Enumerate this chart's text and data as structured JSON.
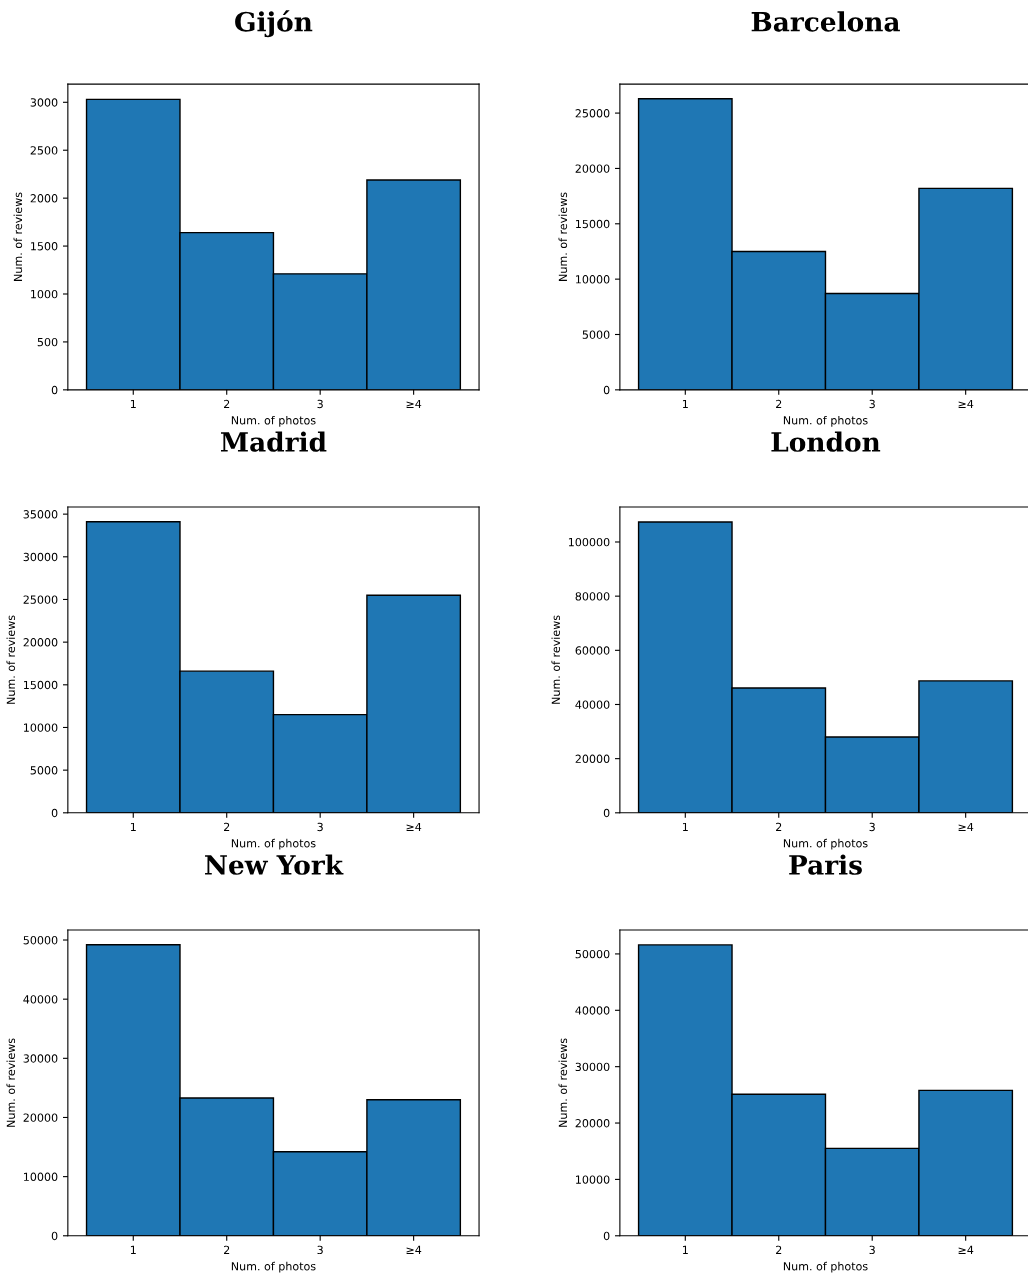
{
  "chart_data": [
    {
      "type": "bar",
      "title": "Gijón",
      "xlabel": "Num. of photos",
      "ylabel": "Num. of reviews",
      "categories": [
        "1",
        "2",
        "3",
        "≥4"
      ],
      "values": [
        3030,
        1640,
        1210,
        2190
      ],
      "color": "#1f77b4",
      "ylim": [
        0,
        3190
      ],
      "yticks": [
        0,
        500,
        1000,
        1500,
        2000,
        2500,
        3000
      ],
      "grid": false
    },
    {
      "type": "bar",
      "title": "Barcelona",
      "xlabel": "Num. of photos",
      "ylabel": "Num. of reviews",
      "categories": [
        "1",
        "2",
        "3",
        "≥4"
      ],
      "values": [
        26300,
        12500,
        8700,
        18200
      ],
      "color": "#1f77b4",
      "ylim": [
        0,
        27620
      ],
      "yticks": [
        0,
        5000,
        10000,
        15000,
        20000,
        25000
      ],
      "grid": false
    },
    {
      "type": "bar",
      "title": "Madrid",
      "xlabel": "Num. of photos",
      "ylabel": "Num. of reviews",
      "categories": [
        "1",
        "2",
        "3",
        "≥4"
      ],
      "values": [
        34100,
        16600,
        11500,
        25500
      ],
      "color": "#1f77b4",
      "ylim": [
        0,
        35830
      ],
      "yticks": [
        0,
        5000,
        10000,
        15000,
        20000,
        25000,
        30000,
        35000
      ],
      "grid": false
    },
    {
      "type": "bar",
      "title": "London",
      "xlabel": "Num. of photos",
      "ylabel": "Num. of reviews",
      "categories": [
        "1",
        "2",
        "3",
        "≥4"
      ],
      "values": [
        107400,
        46100,
        28000,
        48700
      ],
      "color": "#1f77b4",
      "ylim": [
        0,
        112900
      ],
      "yticks": [
        0,
        20000,
        40000,
        60000,
        80000,
        100000
      ],
      "grid": false
    },
    {
      "type": "bar",
      "title": "New York",
      "xlabel": "Num. of photos",
      "ylabel": "Num. of reviews",
      "categories": [
        "1",
        "2",
        "3",
        "≥4"
      ],
      "values": [
        49200,
        23300,
        14200,
        23000
      ],
      "color": "#1f77b4",
      "ylim": [
        0,
        51690
      ],
      "yticks": [
        0,
        10000,
        20000,
        30000,
        40000,
        50000
      ],
      "grid": false
    },
    {
      "type": "bar",
      "title": "Paris",
      "xlabel": "Num. of photos",
      "ylabel": "Num. of reviews",
      "categories": [
        "1",
        "2",
        "3",
        "≥4"
      ],
      "values": [
        51600,
        25100,
        15500,
        25800
      ],
      "color": "#1f77b4",
      "ylim": [
        0,
        54240
      ],
      "yticks": [
        0,
        10000,
        20000,
        30000,
        40000,
        50000
      ],
      "grid": false
    }
  ]
}
